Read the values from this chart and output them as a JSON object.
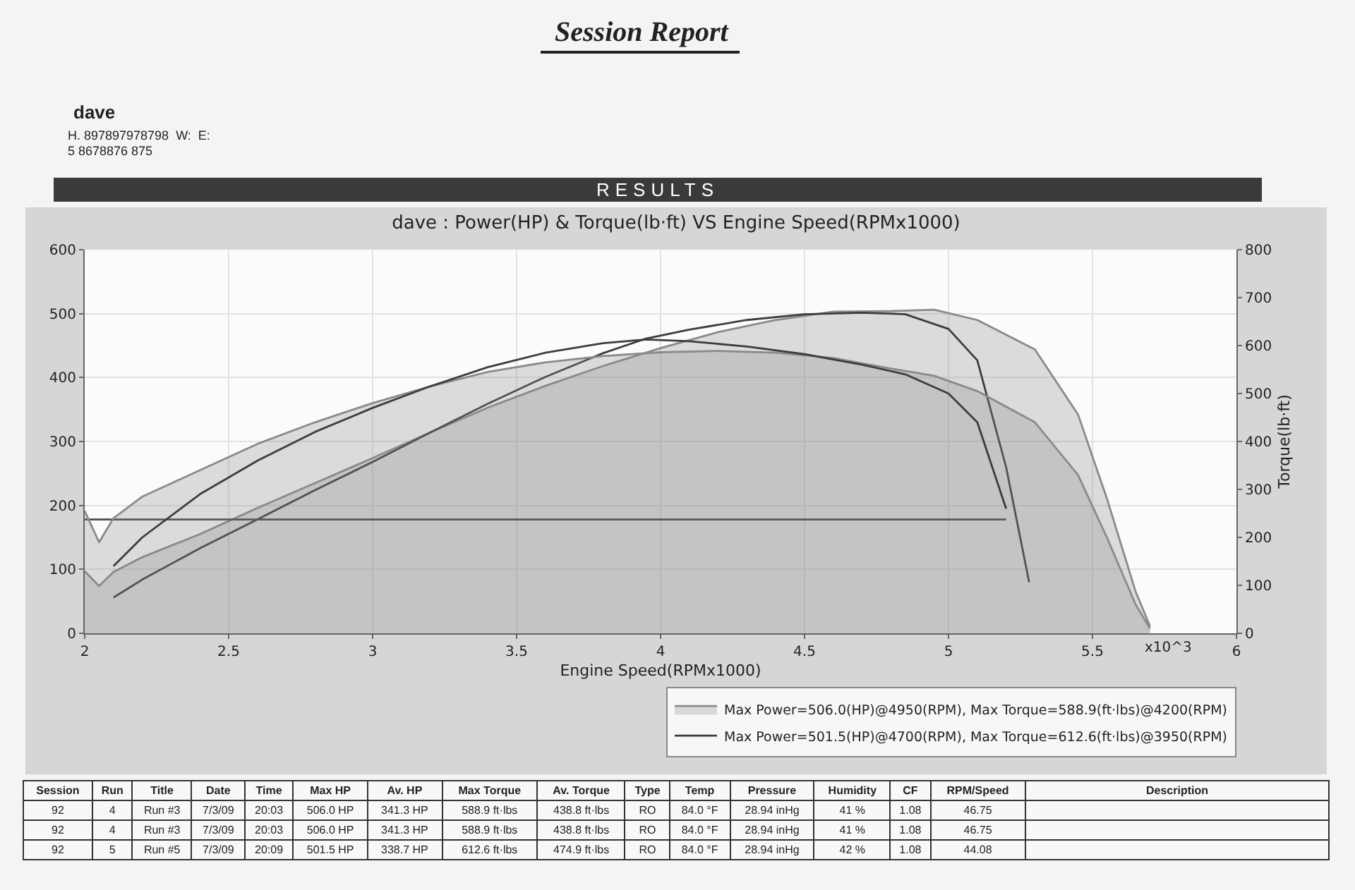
{
  "chart_data": {
    "type": "line",
    "title": "dave : Power(HP) & Torque(lb·ft) VS Engine Speed(RPMx1000)",
    "xlabel": "Engine Speed(RPMx1000)",
    "y2label": "Torque(lb·ft)",
    "xlim": [
      2,
      6
    ],
    "xticks": [
      2,
      2.5,
      3,
      3.5,
      4,
      4.5,
      5,
      5.5,
      6
    ],
    "ylim": [
      0,
      600
    ],
    "yticks": [
      0,
      100,
      200,
      300,
      400,
      500,
      600
    ],
    "y2lim": [
      0,
      800
    ],
    "y2ticks": [
      0,
      100,
      200,
      300,
      400,
      500,
      600,
      700,
      800
    ],
    "grid": true,
    "legend": "bottom right",
    "series": [
      {
        "name": "Max Power=506.0(HP)@4950(RPM), Max Torque=588.9(ft·lbs)@4200(RPM)",
        "type": "area",
        "color": "#8a8a8a",
        "x": [
          2.0,
          2.05,
          2.1,
          2.2,
          2.4,
          2.6,
          2.8,
          3.0,
          3.2,
          3.4,
          3.6,
          3.8,
          4.0,
          4.2,
          4.4,
          4.6,
          4.8,
          4.95,
          5.1,
          5.3,
          5.45,
          5.55,
          5.65,
          5.7
        ],
        "values": [
          97,
          74,
          96,
          119,
          155,
          196,
          235,
          274,
          314,
          353,
          387,
          418,
          446,
          471,
          490,
          503,
          504,
          506.0,
          490,
          444,
          342,
          211,
          65,
          11
        ]
      },
      {
        "type": "area",
        "axis": "y2",
        "color": "#8a8a8a",
        "x": [
          2.0,
          2.05,
          2.1,
          2.2,
          2.4,
          2.6,
          2.8,
          3.0,
          3.2,
          3.4,
          3.6,
          3.8,
          4.0,
          4.2,
          4.4,
          4.6,
          4.8,
          4.95,
          5.1,
          5.3,
          5.45,
          5.55,
          5.65,
          5.7
        ],
        "values": [
          255,
          190,
          240,
          285,
          340,
          395,
          440,
          480,
          515,
          545,
          565,
          578,
          586,
          588.9,
          585,
          574,
          552,
          537,
          505,
          440,
          330,
          200,
          60,
          10
        ]
      },
      {
        "name": "Max Power=501.5(HP)@4700(RPM), Max Torque=612.6(ft·lbs)@3950(RPM)",
        "color": "#3d3d3d",
        "x": [
          2.1,
          2.2,
          2.4,
          2.6,
          2.8,
          3.0,
          3.2,
          3.4,
          3.6,
          3.8,
          3.95,
          4.1,
          4.3,
          4.5,
          4.7,
          4.85,
          5.0,
          5.1,
          5.2,
          5.28
        ],
        "values": [
          56,
          84,
          133,
          178,
          224,
          268,
          314,
          359,
          401,
          438,
          461,
          475,
          490,
          499,
          501.5,
          499,
          476,
          427,
          260,
          80
        ]
      },
      {
        "axis": "y2",
        "color": "#3d3d3d",
        "x": [
          2.1,
          2.2,
          2.4,
          2.6,
          2.8,
          3.0,
          3.2,
          3.4,
          3.6,
          3.8,
          3.95,
          4.1,
          4.3,
          4.5,
          4.7,
          4.85,
          5.0,
          5.1,
          5.2
        ],
        "values": [
          140,
          200,
          290,
          360,
          420,
          470,
          515,
          555,
          585,
          605,
          612.6,
          609,
          598,
          582,
          560,
          540,
          500,
          440,
          260
        ]
      },
      {
        "color": "#4a4a4a",
        "x": [
          2.0,
          5.2
        ],
        "values": [
          178,
          178
        ]
      }
    ],
    "annotations": [
      "Session Report",
      "dave",
      "H. 897897978798  W:  E:",
      "5 8678876 875",
      "RESULTS",
      "x10^3",
      "Session",
      "Run",
      "Title",
      "Date",
      "Time",
      "Max HP",
      "Av. HP",
      "Max Torque",
      "Av. Torque",
      "Type",
      "Temp",
      "Pressure",
      "Humidity",
      "CF",
      "RPM/Speed",
      "Description",
      "92",
      "4",
      "Run #3",
      "7/3/09",
      "20:03",
      "506.0 HP",
      "341.3 HP",
      "588.9 ft·lbs",
      "438.8 ft·lbs",
      "RO",
      "84.0 °F",
      "28.94 inHg",
      "41 %",
      "1.08",
      "46.75",
      "92",
      "4",
      "Run #3",
      "7/3/09",
      "20:03",
      "506.0 HP",
      "341.3 HP",
      "588.9 ft·lbs",
      "438.8 ft·lbs",
      "RO",
      "84.0 °F",
      "28.94 inHg",
      "41 %",
      "1.08",
      "46.75",
      "92",
      "5",
      "Run #5",
      "7/3/09",
      "20:09",
      "501.5 HP",
      "338.7 HP",
      "612.6 ft·lbs",
      "474.9 ft·lbs",
      "RO",
      "84.0 °F",
      "28.94 inHg",
      "42 %",
      "1.08",
      "44.08"
    ]
  }
}
